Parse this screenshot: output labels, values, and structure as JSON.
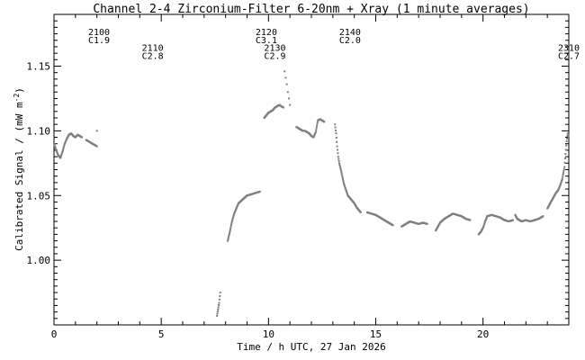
{
  "chart_data": {
    "type": "scatter",
    "title": "Channel 2-4   Zirconium-Filter   6-20nm + Xray   (1 minute averages)",
    "xlabel": "Time / h UTC, 27 Jan 2026",
    "ylabel": "Calibrated Signal / (mW m",
    "ylabel_sup": "-2",
    "ylabel_end": ")",
    "xlim": [
      0,
      24
    ],
    "ylim": [
      0.95,
      1.19
    ],
    "xticks": [
      0,
      5,
      10,
      15,
      20
    ],
    "yticks": [
      1.0,
      1.05,
      1.1,
      1.15
    ],
    "ytick_labels": [
      "1.00",
      "1.05",
      "1.10",
      "1.15"
    ],
    "grid": false,
    "marker_color": "#7f7f7f",
    "annotations": [
      {
        "x": 2.1,
        "y_label": 1.174,
        "line1": "2100",
        "line2": "C1.9"
      },
      {
        "x": 4.6,
        "y_label": 1.162,
        "line1": "2110",
        "line2": "C2.8"
      },
      {
        "x": 9.9,
        "y_label": 1.174,
        "line1": "2120",
        "line2": "C3.1"
      },
      {
        "x": 10.3,
        "y_label": 1.162,
        "line1": "2130",
        "line2": "C2.9"
      },
      {
        "x": 13.8,
        "y_label": 1.174,
        "line1": "2140",
        "line2": "C2.0"
      },
      {
        "x": 24.0,
        "y_label": 1.162,
        "line1": "2310",
        "line2": "C2.7"
      }
    ],
    "segments": [
      {
        "pts": [
          [
            0.0,
            1.09
          ],
          [
            0.1,
            1.085
          ],
          [
            0.2,
            1.081
          ],
          [
            0.3,
            1.079
          ],
          [
            0.4,
            1.084
          ],
          [
            0.5,
            1.09
          ],
          [
            0.6,
            1.094
          ],
          [
            0.7,
            1.097
          ],
          [
            0.8,
            1.098
          ],
          [
            0.9,
            1.096
          ],
          [
            1.0,
            1.095
          ],
          [
            1.1,
            1.097
          ],
          [
            1.2,
            1.096
          ],
          [
            1.3,
            1.095
          ]
        ]
      },
      {
        "pts": [
          [
            1.5,
            1.093
          ],
          [
            1.6,
            1.092
          ],
          [
            1.7,
            1.091
          ],
          [
            1.8,
            1.09
          ],
          [
            1.9,
            1.089
          ],
          [
            2.0,
            1.088
          ]
        ],
        "extra": [
          [
            2.0,
            1.1
          ]
        ]
      },
      {
        "pts": [
          [
            7.6,
            0.957
          ],
          [
            7.7,
            0.967
          ],
          [
            7.75,
            0.975
          ]
        ]
      },
      {
        "pts": [
          [
            8.1,
            1.015
          ],
          [
            8.2,
            1.022
          ],
          [
            8.3,
            1.03
          ],
          [
            8.4,
            1.036
          ],
          [
            8.5,
            1.04
          ],
          [
            8.6,
            1.044
          ],
          [
            8.8,
            1.047
          ],
          [
            9.0,
            1.05
          ],
          [
            9.2,
            1.051
          ],
          [
            9.4,
            1.052
          ],
          [
            9.6,
            1.053
          ]
        ]
      },
      {
        "pts": [
          [
            9.8,
            1.11
          ],
          [
            9.9,
            1.112
          ],
          [
            10.0,
            1.114
          ],
          [
            10.1,
            1.115
          ],
          [
            10.2,
            1.116
          ],
          [
            10.3,
            1.118
          ],
          [
            10.4,
            1.119
          ],
          [
            10.5,
            1.12
          ],
          [
            10.6,
            1.119
          ],
          [
            10.7,
            1.118
          ]
        ],
        "extra": [
          [
            10.75,
            1.146
          ],
          [
            10.8,
            1.141
          ],
          [
            10.85,
            1.136
          ],
          [
            10.9,
            1.13
          ],
          [
            10.95,
            1.125
          ],
          [
            11.0,
            1.12
          ]
        ]
      },
      {
        "pts": [
          [
            11.3,
            1.103
          ],
          [
            11.4,
            1.102
          ],
          [
            11.5,
            1.101
          ],
          [
            11.6,
            1.1
          ],
          [
            11.7,
            1.1
          ],
          [
            11.8,
            1.099
          ],
          [
            11.9,
            1.098
          ],
          [
            12.0,
            1.096
          ],
          [
            12.1,
            1.095
          ],
          [
            12.2,
            1.099
          ],
          [
            12.3,
            1.108
          ],
          [
            12.4,
            1.109
          ],
          [
            12.5,
            1.108
          ],
          [
            12.6,
            1.107
          ]
        ]
      },
      {
        "pts": [
          [
            13.1,
            1.105
          ],
          [
            13.15,
            1.098
          ],
          [
            13.2,
            1.088
          ],
          [
            13.25,
            1.08
          ],
          [
            13.3,
            1.075
          ],
          [
            13.4,
            1.068
          ],
          [
            13.5,
            1.06
          ],
          [
            13.6,
            1.055
          ],
          [
            13.7,
            1.05
          ],
          [
            13.8,
            1.048
          ],
          [
            13.9,
            1.046
          ],
          [
            14.0,
            1.044
          ],
          [
            14.1,
            1.041
          ],
          [
            14.2,
            1.039
          ],
          [
            14.3,
            1.037
          ]
        ]
      },
      {
        "pts": [
          [
            14.6,
            1.037
          ],
          [
            14.8,
            1.036
          ],
          [
            15.0,
            1.035
          ],
          [
            15.2,
            1.033
          ],
          [
            15.4,
            1.031
          ],
          [
            15.6,
            1.029
          ],
          [
            15.8,
            1.027
          ]
        ]
      },
      {
        "pts": [
          [
            16.2,
            1.026
          ],
          [
            16.4,
            1.028
          ],
          [
            16.6,
            1.03
          ],
          [
            16.8,
            1.029
          ],
          [
            17.0,
            1.028
          ],
          [
            17.2,
            1.029
          ],
          [
            17.4,
            1.028
          ]
        ]
      },
      {
        "pts": [
          [
            17.8,
            1.023
          ],
          [
            17.9,
            1.026
          ],
          [
            18.0,
            1.029
          ],
          [
            18.2,
            1.032
          ],
          [
            18.4,
            1.034
          ],
          [
            18.6,
            1.036
          ],
          [
            18.8,
            1.035
          ],
          [
            19.0,
            1.034
          ],
          [
            19.2,
            1.032
          ],
          [
            19.4,
            1.031
          ]
        ]
      },
      {
        "pts": [
          [
            19.8,
            1.02
          ],
          [
            19.9,
            1.022
          ],
          [
            20.0,
            1.025
          ],
          [
            20.1,
            1.03
          ],
          [
            20.2,
            1.034
          ],
          [
            20.4,
            1.035
          ],
          [
            20.6,
            1.034
          ],
          [
            20.8,
            1.033
          ],
          [
            21.0,
            1.031
          ],
          [
            21.2,
            1.03
          ],
          [
            21.4,
            1.031
          ]
        ]
      },
      {
        "pts": [
          [
            21.5,
            1.035
          ],
          [
            21.6,
            1.032
          ],
          [
            21.8,
            1.03
          ],
          [
            22.0,
            1.031
          ],
          [
            22.2,
            1.03
          ],
          [
            22.4,
            1.031
          ],
          [
            22.6,
            1.032
          ],
          [
            22.8,
            1.034
          ]
        ]
      },
      {
        "pts": [
          [
            23.0,
            1.04
          ],
          [
            23.1,
            1.043
          ],
          [
            23.2,
            1.046
          ],
          [
            23.3,
            1.049
          ],
          [
            23.4,
            1.052
          ],
          [
            23.5,
            1.054
          ],
          [
            23.6,
            1.058
          ],
          [
            23.7,
            1.063
          ],
          [
            23.8,
            1.072
          ],
          [
            23.85,
            1.082
          ],
          [
            23.9,
            1.092
          ],
          [
            23.95,
            1.098
          ],
          [
            24.0,
            1.095
          ]
        ]
      }
    ]
  }
}
